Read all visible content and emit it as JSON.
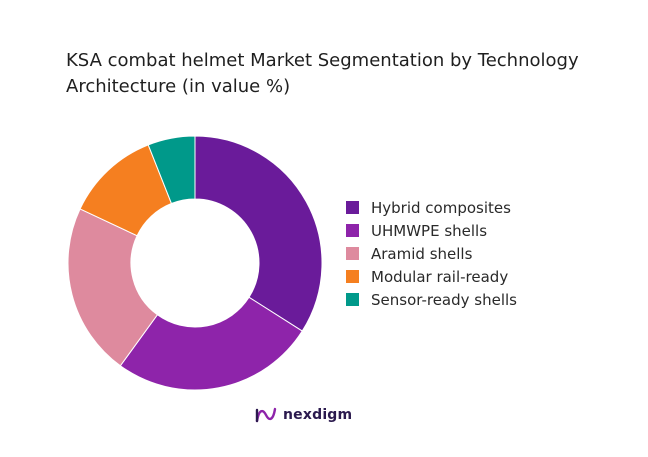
{
  "chart_data": {
    "type": "pie",
    "title": "KSA combat helmet Market Segmentation by Technology Architecture (in value %)",
    "categories": [
      "Hybrid composites",
      "UHMWPE shells",
      "Aramid shells",
      "Modular rail-ready",
      "Sensor-ready shells"
    ],
    "values": [
      34,
      26,
      22,
      12,
      6
    ],
    "colors": [
      "#6a1b9a",
      "#8e24aa",
      "#de8a9e",
      "#f57f20",
      "#00998a"
    ],
    "legend_position": "right",
    "donut": true
  },
  "brand": {
    "name": "nexdigm",
    "logo_icon": "nexdigm-logo-icon",
    "color": "#2b1a4e"
  }
}
